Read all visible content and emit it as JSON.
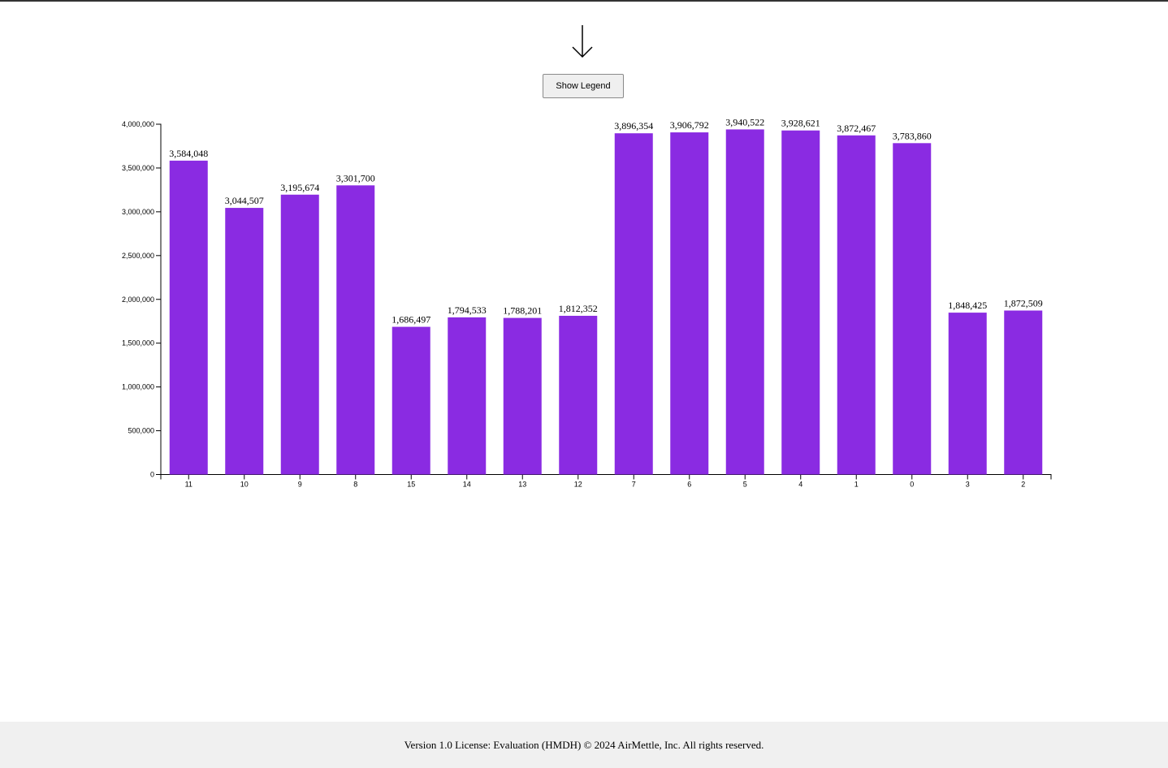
{
  "controls": {
    "legend_button_label": "Show Legend"
  },
  "icons": {
    "sort": "down-arrow-icon"
  },
  "colors": {
    "bar": "#8a2be2",
    "axis": "#000000",
    "footer_bg": "#f0f0f0"
  },
  "chart_data": {
    "type": "bar",
    "categories": [
      "11",
      "10",
      "9",
      "8",
      "15",
      "14",
      "13",
      "12",
      "7",
      "6",
      "5",
      "4",
      "1",
      "0",
      "3",
      "2"
    ],
    "values": [
      3584048,
      3044507,
      3195674,
      3301700,
      1686497,
      1794533,
      1788201,
      1812352,
      3896354,
      3906792,
      3940522,
      3928621,
      3872467,
      3783860,
      1848425,
      1872509
    ],
    "value_labels": [
      "3,584,048",
      "3,044,507",
      "3,195,674",
      "3,301,700",
      "1,686,497",
      "1,794,533",
      "1,788,201",
      "1,812,352",
      "3,896,354",
      "3,906,792",
      "3,940,522",
      "3,928,621",
      "3,872,467",
      "3,783,860",
      "1,848,425",
      "1,872,509"
    ],
    "y_ticks": [
      0,
      500000,
      1000000,
      1500000,
      2000000,
      2500000,
      3000000,
      3500000,
      4000000
    ],
    "y_tick_labels": [
      "0",
      "500,000",
      "1,000,000",
      "1,500,000",
      "2,000,000",
      "2,500,000",
      "3,000,000",
      "3,500,000",
      "4,000,000"
    ],
    "ylim": [
      0,
      4000000
    ],
    "grid": false,
    "legend": "hidden"
  },
  "footer": {
    "text": "Version 1.0 License: Evaluation (HMDH) © 2024 AirMettle, Inc. All rights reserved."
  }
}
